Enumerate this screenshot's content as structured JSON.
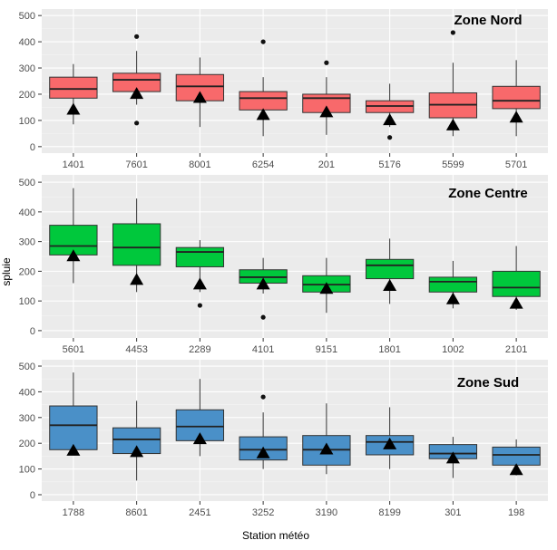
{
  "chart_data": {
    "type": "boxplot",
    "xlabel": "Station météo",
    "ylabel": "spluie",
    "ylim": [
      0,
      500
    ],
    "yticks": [
      0,
      100,
      200,
      300,
      400,
      500
    ],
    "grid": true,
    "legend": "none",
    "marker_shape": "triangle",
    "panels": [
      {
        "title": "Zone Nord",
        "color": "#F8696B",
        "stations": [
          {
            "label": "1401",
            "min": 85,
            "q1": 185,
            "median": 220,
            "q3": 265,
            "max": 315,
            "outliers": [],
            "marker": 140
          },
          {
            "label": "7601",
            "min": 160,
            "q1": 210,
            "median": 255,
            "q3": 280,
            "max": 365,
            "outliers": [
              90,
              420
            ],
            "marker": 200
          },
          {
            "label": "8001",
            "min": 75,
            "q1": 175,
            "median": 230,
            "q3": 275,
            "max": 340,
            "outliers": [],
            "marker": 185
          },
          {
            "label": "6254",
            "min": 40,
            "q1": 140,
            "median": 185,
            "q3": 210,
            "max": 265,
            "outliers": [
              400
            ],
            "marker": 120
          },
          {
            "label": "201",
            "min": 45,
            "q1": 130,
            "median": 185,
            "q3": 200,
            "max": 265,
            "outliers": [
              320
            ],
            "marker": 130
          },
          {
            "label": "5176",
            "min": 75,
            "q1": 130,
            "median": 155,
            "q3": 175,
            "max": 240,
            "outliers": [
              35
            ],
            "marker": 100
          },
          {
            "label": "5599",
            "min": 40,
            "q1": 110,
            "median": 160,
            "q3": 205,
            "max": 320,
            "outliers": [
              435
            ],
            "marker": 80
          },
          {
            "label": "5701",
            "min": 40,
            "q1": 145,
            "median": 175,
            "q3": 230,
            "max": 330,
            "outliers": [],
            "marker": 110
          }
        ]
      },
      {
        "title": "Zone Centre",
        "color": "#00C83C",
        "stations": [
          {
            "label": "5601",
            "min": 160,
            "q1": 255,
            "median": 285,
            "q3": 355,
            "max": 480,
            "outliers": [],
            "marker": 250
          },
          {
            "label": "4453",
            "min": 130,
            "q1": 220,
            "median": 280,
            "q3": 360,
            "max": 445,
            "outliers": [],
            "marker": 170
          },
          {
            "label": "2289",
            "min": 130,
            "q1": 215,
            "median": 265,
            "q3": 280,
            "max": 305,
            "outliers": [
              85
            ],
            "marker": 155
          },
          {
            "label": "4101",
            "min": 125,
            "q1": 160,
            "median": 180,
            "q3": 205,
            "max": 245,
            "outliers": [
              45
            ],
            "marker": 155
          },
          {
            "label": "9151",
            "min": 60,
            "q1": 130,
            "median": 155,
            "q3": 185,
            "max": 245,
            "outliers": [],
            "marker": 140
          },
          {
            "label": "1801",
            "min": 90,
            "q1": 175,
            "median": 220,
            "q3": 240,
            "max": 310,
            "outliers": [],
            "marker": 150
          },
          {
            "label": "1002",
            "min": 75,
            "q1": 130,
            "median": 165,
            "q3": 180,
            "max": 235,
            "outliers": [],
            "marker": 105
          },
          {
            "label": "2101",
            "min": 70,
            "q1": 115,
            "median": 145,
            "q3": 200,
            "max": 285,
            "outliers": [],
            "marker": 90
          }
        ]
      },
      {
        "title": "Zone Sud",
        "color": "#4A90C8",
        "stations": [
          {
            "label": "1788",
            "min": 160,
            "q1": 175,
            "median": 270,
            "q3": 345,
            "max": 475,
            "outliers": [],
            "marker": 170
          },
          {
            "label": "8601",
            "min": 55,
            "q1": 160,
            "median": 215,
            "q3": 260,
            "max": 365,
            "outliers": [],
            "marker": 165
          },
          {
            "label": "2451",
            "min": 150,
            "q1": 210,
            "median": 265,
            "q3": 330,
            "max": 450,
            "outliers": [],
            "marker": 215
          },
          {
            "label": "3252",
            "min": 100,
            "q1": 135,
            "median": 175,
            "q3": 225,
            "max": 320,
            "outliers": [
              380
            ],
            "marker": 160
          },
          {
            "label": "3190",
            "min": 80,
            "q1": 115,
            "median": 175,
            "q3": 230,
            "max": 355,
            "outliers": [],
            "marker": 175
          },
          {
            "label": "8199",
            "min": 100,
            "q1": 155,
            "median": 205,
            "q3": 230,
            "max": 340,
            "outliers": [],
            "marker": 195
          },
          {
            "label": "301",
            "min": 65,
            "q1": 140,
            "median": 160,
            "q3": 195,
            "max": 225,
            "outliers": [],
            "marker": 140
          },
          {
            "label": "198",
            "min": 75,
            "q1": 115,
            "median": 155,
            "q3": 185,
            "max": 215,
            "outliers": [],
            "marker": 95
          }
        ]
      }
    ]
  }
}
